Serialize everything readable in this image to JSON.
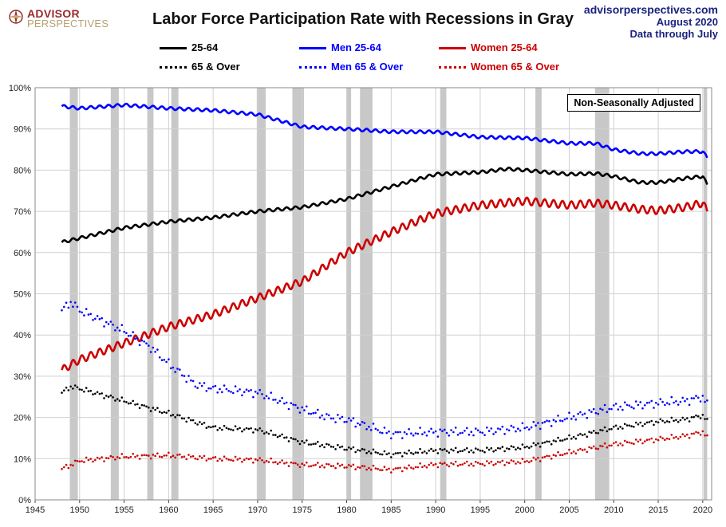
{
  "header": {
    "title": "Labor Force Participation Rate with Recessions in Gray",
    "logo_line1": "ADVISOR",
    "logo_line2": "PERSPECTIVES",
    "source_site": "advisorperspectives.com",
    "source_date": "August 2020",
    "source_note": "Data through July"
  },
  "annotation": "Non-Seasonally Adjusted",
  "colors": {
    "black": "#000000",
    "blue": "#0000ff",
    "red": "#cc0000",
    "recession": "#c8c8c8",
    "grid": "#d0d0d0"
  },
  "chart_data": {
    "type": "line",
    "title": "Labor Force Participation Rate with Recessions in Gray",
    "xlim": [
      1945,
      2021
    ],
    "ylim": [
      0,
      100
    ],
    "x_ticks": [
      1945,
      1950,
      1955,
      1960,
      1965,
      1970,
      1975,
      1980,
      1985,
      1990,
      1995,
      2000,
      2005,
      2010,
      2015,
      2020
    ],
    "y_ticks": [
      "0%",
      "10%",
      "20%",
      "30%",
      "40%",
      "50%",
      "60%",
      "70%",
      "80%",
      "90%",
      "100%"
    ],
    "grid": true,
    "legend_placement": "top",
    "recessions": [
      [
        1948.9,
        1949.8
      ],
      [
        1953.5,
        1954.4
      ],
      [
        1957.6,
        1958.3
      ],
      [
        1960.3,
        1961.1
      ],
      [
        1969.9,
        1970.9
      ],
      [
        1973.9,
        1975.2
      ],
      [
        1980.0,
        1980.5
      ],
      [
        1981.5,
        1982.9
      ],
      [
        1990.5,
        1991.2
      ],
      [
        2001.2,
        2001.9
      ],
      [
        2007.9,
        2009.5
      ],
      [
        2020.1,
        2020.5
      ]
    ],
    "series": [
      {
        "name": "25-64",
        "color": "#000000",
        "style": "solid",
        "points": [
          [
            1948,
            62.5
          ],
          [
            1950,
            63.5
          ],
          [
            1955,
            66
          ],
          [
            1960,
            67.5
          ],
          [
            1965,
            68.5
          ],
          [
            1970,
            70
          ],
          [
            1975,
            71
          ],
          [
            1980,
            73
          ],
          [
            1985,
            76
          ],
          [
            1990,
            79
          ],
          [
            1995,
            79.5
          ],
          [
            1998,
            80.3
          ],
          [
            2000,
            80
          ],
          [
            2005,
            79
          ],
          [
            2008,
            79.2
          ],
          [
            2010,
            78.5
          ],
          [
            2013,
            77
          ],
          [
            2015,
            77
          ],
          [
            2018,
            78
          ],
          [
            2020,
            78.5
          ],
          [
            2020.5,
            76.5
          ]
        ]
      },
      {
        "name": "Men 25-64",
        "color": "#0000ff",
        "style": "solid",
        "points": [
          [
            1948,
            95.5
          ],
          [
            1950,
            95
          ],
          [
            1955,
            95.8
          ],
          [
            1960,
            95
          ],
          [
            1965,
            94.5
          ],
          [
            1970,
            93.5
          ],
          [
            1975,
            90.5
          ],
          [
            1980,
            90
          ],
          [
            1985,
            89.3
          ],
          [
            1990,
            89.3
          ],
          [
            1995,
            88
          ],
          [
            2000,
            87.8
          ],
          [
            2005,
            86.5
          ],
          [
            2008,
            86.5
          ],
          [
            2010,
            85
          ],
          [
            2013,
            84
          ],
          [
            2015,
            84
          ],
          [
            2018,
            84.5
          ],
          [
            2020,
            84.5
          ],
          [
            2020.5,
            83
          ]
        ]
      },
      {
        "name": "Women 25-64",
        "color": "#cc0000",
        "style": "solid",
        "points": [
          [
            1948,
            31.5
          ],
          [
            1950,
            34
          ],
          [
            1955,
            38
          ],
          [
            1960,
            42
          ],
          [
            1965,
            45
          ],
          [
            1970,
            49
          ],
          [
            1975,
            53
          ],
          [
            1980,
            60
          ],
          [
            1985,
            65
          ],
          [
            1990,
            69.5
          ],
          [
            1995,
            71.5
          ],
          [
            2000,
            72.5
          ],
          [
            2005,
            71.5
          ],
          [
            2008,
            72
          ],
          [
            2010,
            71.5
          ],
          [
            2013,
            70.5
          ],
          [
            2015,
            70.2
          ],
          [
            2018,
            71
          ],
          [
            2020,
            72
          ],
          [
            2020.5,
            70
          ]
        ]
      },
      {
        "name": "65 & Over",
        "color": "#000000",
        "style": "dotted",
        "points": [
          [
            1948,
            26
          ],
          [
            1949,
            27.5
          ],
          [
            1950,
            27
          ],
          [
            1955,
            24
          ],
          [
            1960,
            21
          ],
          [
            1965,
            17.5
          ],
          [
            1970,
            17
          ],
          [
            1975,
            14
          ],
          [
            1980,
            12.5
          ],
          [
            1985,
            11
          ],
          [
            1990,
            12
          ],
          [
            1995,
            12
          ],
          [
            2000,
            12.8
          ],
          [
            2005,
            15
          ],
          [
            2010,
            17.5
          ],
          [
            2015,
            19
          ],
          [
            2018,
            19.5
          ],
          [
            2020,
            20.5
          ],
          [
            2020.5,
            19
          ]
        ]
      },
      {
        "name": "Men 65 & Over",
        "color": "#0000ff",
        "style": "dotted",
        "points": [
          [
            1948,
            46
          ],
          [
            1949,
            48
          ],
          [
            1950,
            46
          ],
          [
            1952,
            44
          ],
          [
            1955,
            41
          ],
          [
            1958,
            37
          ],
          [
            1960,
            33
          ],
          [
            1963,
            28
          ],
          [
            1965,
            27
          ],
          [
            1970,
            26
          ],
          [
            1975,
            22
          ],
          [
            1978,
            20
          ],
          [
            1980,
            19.5
          ],
          [
            1985,
            16
          ],
          [
            1990,
            16.5
          ],
          [
            1995,
            16.5
          ],
          [
            2000,
            17.5
          ],
          [
            2005,
            20
          ],
          [
            2010,
            22.5
          ],
          [
            2015,
            23.5
          ],
          [
            2018,
            24
          ],
          [
            2020,
            25
          ],
          [
            2020.5,
            23
          ]
        ]
      },
      {
        "name": "Women 65 & Over",
        "color": "#cc0000",
        "style": "dotted",
        "points": [
          [
            1948,
            7.5
          ],
          [
            1950,
            9.5
          ],
          [
            1955,
            10.5
          ],
          [
            1960,
            10.8
          ],
          [
            1965,
            10
          ],
          [
            1970,
            9.7
          ],
          [
            1975,
            8.5
          ],
          [
            1980,
            8.2
          ],
          [
            1985,
            7.3
          ],
          [
            1990,
            8.6
          ],
          [
            1995,
            8.8
          ],
          [
            2000,
            9.3
          ],
          [
            2005,
            11.5
          ],
          [
            2010,
            13.5
          ],
          [
            2015,
            14.7
          ],
          [
            2018,
            15.5
          ],
          [
            2020,
            16.5
          ],
          [
            2020.5,
            15
          ]
        ]
      }
    ]
  }
}
